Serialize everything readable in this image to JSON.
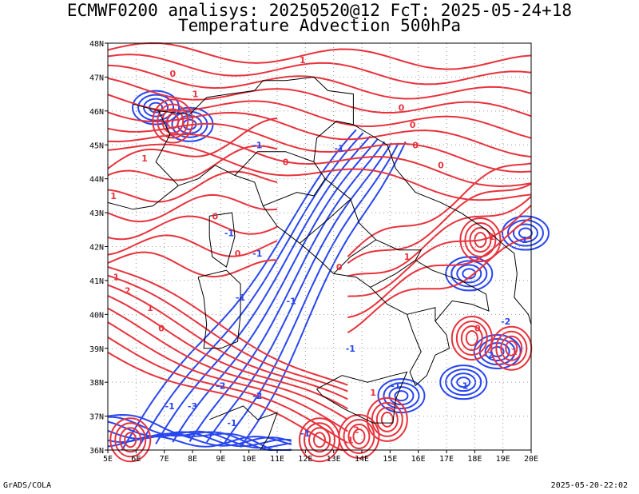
{
  "title_line1": "ECMWF0200 analisys: 20250520@12 FcT: 2025-05-24+18",
  "title_line2": "Temperature Advection 500hPa",
  "footer_left": "GrADS/COLA",
  "footer_right": "2025-05-20-22:02",
  "map": {
    "lon_labels": [
      "5E",
      "6E",
      "7E",
      "8E",
      "9E",
      "10E",
      "11E",
      "12E",
      "13E",
      "14E",
      "15E",
      "16E",
      "17E",
      "18E",
      "19E",
      "20E"
    ],
    "lat_labels": [
      "48N",
      "47N",
      "46N",
      "45N",
      "44N",
      "43N",
      "42N",
      "41N",
      "40N",
      "39N",
      "38N",
      "37N",
      "36N"
    ],
    "lon_range": [
      5,
      20
    ],
    "lat_range": [
      36,
      48
    ],
    "grid": true,
    "colors": {
      "positive_contour": "#e8323c",
      "negative_contour": "#2846f0",
      "coastline": "#000000",
      "grid": "#9a9a9a"
    },
    "contour_labels": [
      {
        "text": "1",
        "lon": 11.9,
        "lat": 47.5,
        "sign": "pos"
      },
      {
        "text": "0",
        "lon": 7.3,
        "lat": 47.1,
        "sign": "pos"
      },
      {
        "text": "1",
        "lon": 8.1,
        "lat": 46.5,
        "sign": "pos"
      },
      {
        "text": "0",
        "lon": 15.4,
        "lat": 46.1,
        "sign": "pos"
      },
      {
        "text": "0",
        "lon": 15.8,
        "lat": 45.6,
        "sign": "pos"
      },
      {
        "text": "0",
        "lon": 15.9,
        "lat": 45.0,
        "sign": "pos"
      },
      {
        "text": "0",
        "lon": 16.8,
        "lat": 44.4,
        "sign": "pos"
      },
      {
        "text": "-1",
        "lon": 10.3,
        "lat": 45.0,
        "sign": "neg"
      },
      {
        "text": "-1",
        "lon": 13.2,
        "lat": 44.9,
        "sign": "neg"
      },
      {
        "text": "0",
        "lon": 11.3,
        "lat": 44.5,
        "sign": "pos"
      },
      {
        "text": "1",
        "lon": 6.3,
        "lat": 44.6,
        "sign": "pos"
      },
      {
        "text": "1",
        "lon": 5.2,
        "lat": 43.5,
        "sign": "pos"
      },
      {
        "text": "0",
        "lon": 8.8,
        "lat": 42.9,
        "sign": "pos"
      },
      {
        "text": "-1",
        "lon": 9.3,
        "lat": 42.4,
        "sign": "neg"
      },
      {
        "text": "0",
        "lon": 9.6,
        "lat": 41.8,
        "sign": "pos"
      },
      {
        "text": "-1",
        "lon": 10.3,
        "lat": 41.8,
        "sign": "neg"
      },
      {
        "text": "1",
        "lon": 5.3,
        "lat": 41.1,
        "sign": "pos"
      },
      {
        "text": "2",
        "lon": 5.7,
        "lat": 40.7,
        "sign": "pos"
      },
      {
        "text": "1",
        "lon": 6.5,
        "lat": 40.2,
        "sign": "pos"
      },
      {
        "text": "0",
        "lon": 6.9,
        "lat": 39.6,
        "sign": "pos"
      },
      {
        "text": "-1",
        "lon": 9.7,
        "lat": 40.5,
        "sign": "neg"
      },
      {
        "text": "-1",
        "lon": 11.5,
        "lat": 40.4,
        "sign": "neg"
      },
      {
        "text": "0",
        "lon": 13.2,
        "lat": 41.4,
        "sign": "pos"
      },
      {
        "text": "1",
        "lon": 15.6,
        "lat": 41.7,
        "sign": "pos"
      },
      {
        "text": "-1",
        "lon": 13.6,
        "lat": 39.0,
        "sign": "neg"
      },
      {
        "text": "-2",
        "lon": 9.0,
        "lat": 37.9,
        "sign": "neg"
      },
      {
        "text": "-2",
        "lon": 10.3,
        "lat": 37.6,
        "sign": "neg"
      },
      {
        "text": "-1",
        "lon": 7.2,
        "lat": 37.3,
        "sign": "neg"
      },
      {
        "text": "-3",
        "lon": 8.0,
        "lat": 37.3,
        "sign": "neg"
      },
      {
        "text": "-1",
        "lon": 9.4,
        "lat": 36.8,
        "sign": "neg"
      },
      {
        "text": "-1",
        "lon": 12.0,
        "lat": 36.5,
        "sign": "neg"
      },
      {
        "text": "-1",
        "lon": 15.2,
        "lat": 37.9,
        "sign": "neg"
      },
      {
        "text": "1",
        "lon": 14.4,
        "lat": 37.7,
        "sign": "pos"
      },
      {
        "text": "-1",
        "lon": 17.6,
        "lat": 37.9,
        "sign": "neg"
      },
      {
        "text": "-2",
        "lon": 18.5,
        "lat": 38.8,
        "sign": "neg"
      },
      {
        "text": "-2",
        "lon": 19.1,
        "lat": 39.8,
        "sign": "neg"
      },
      {
        "text": "1",
        "lon": 19.4,
        "lat": 38.9,
        "sign": "pos"
      },
      {
        "text": "0",
        "lon": 18.1,
        "lat": 39.6,
        "sign": "pos"
      },
      {
        "text": "1",
        "lon": 18.6,
        "lat": 42.3,
        "sign": "pos"
      },
      {
        "text": "-1",
        "lon": 19.7,
        "lat": 42.2,
        "sign": "neg"
      },
      {
        "text": "1",
        "lon": 13.6,
        "lat": 36.3,
        "sign": "pos"
      },
      {
        "text": "2",
        "lon": 13.8,
        "lat": 36.6,
        "sign": "pos"
      }
    ]
  }
}
